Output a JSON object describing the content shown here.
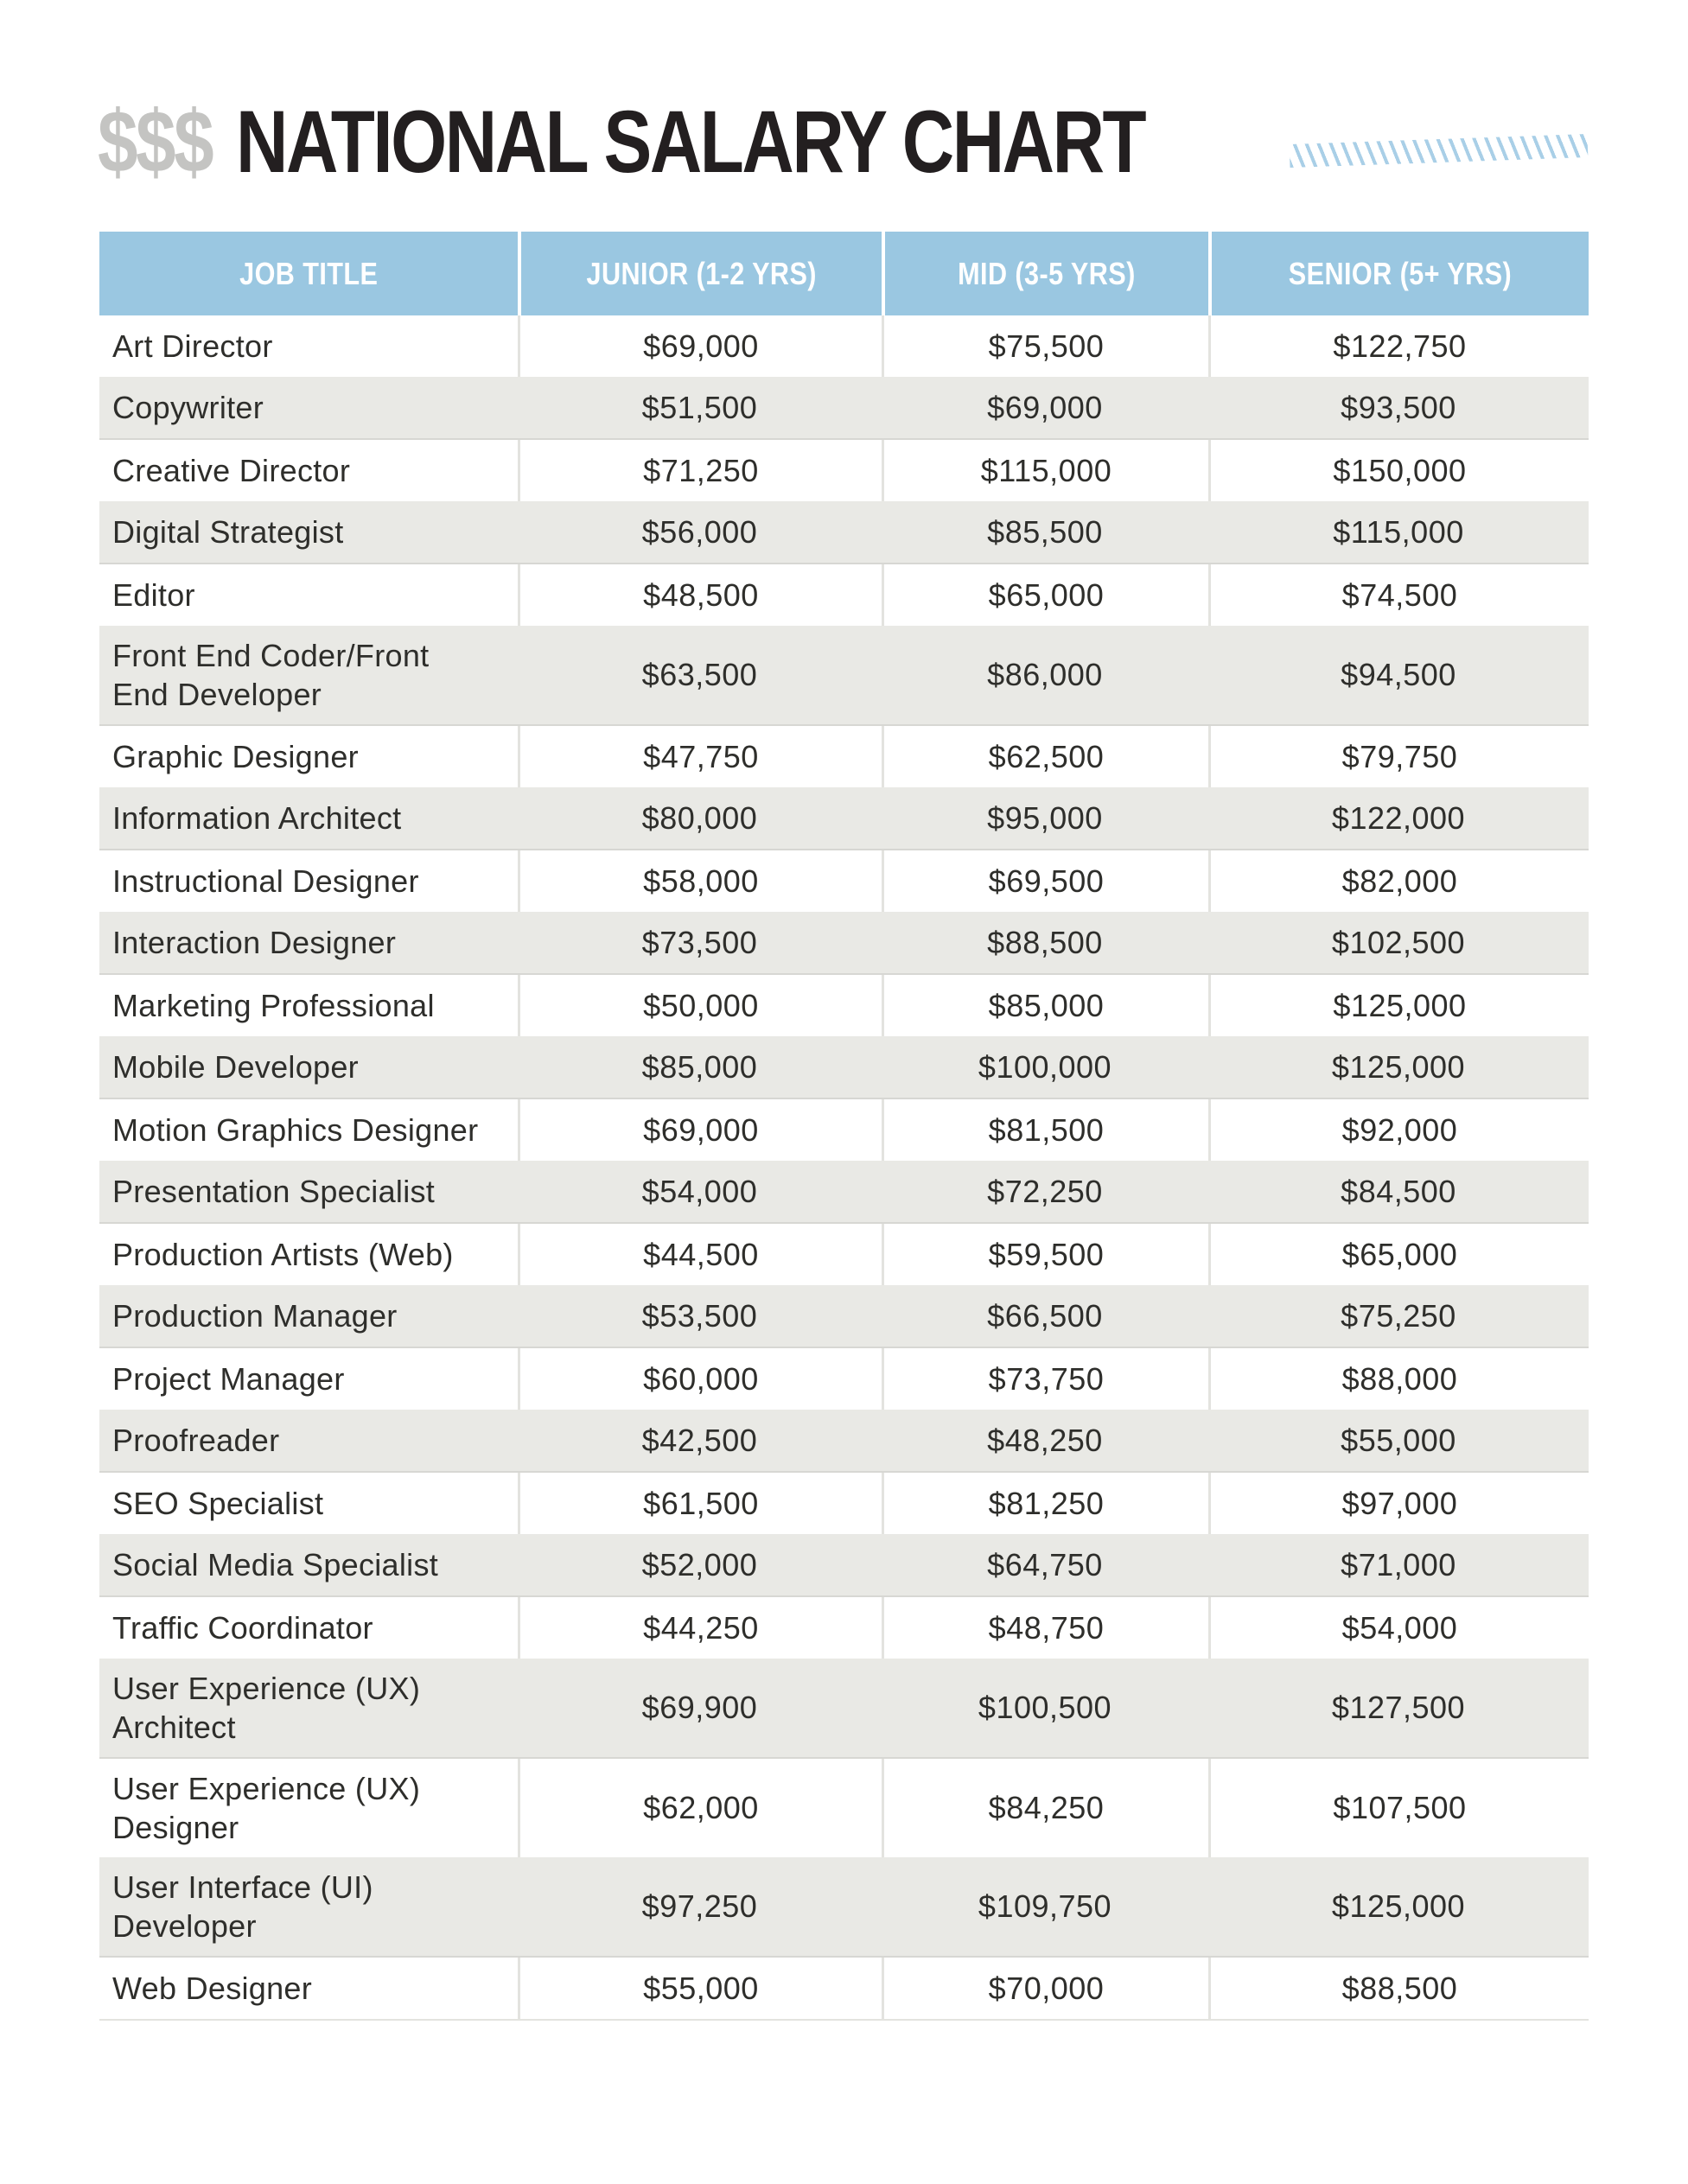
{
  "style": {
    "header_bg": "#9ac7e1",
    "stripe_bg": "#e9e9e5",
    "stripe_edge": "#d7d7d3",
    "divider": "#e3e3df",
    "title_black": "#231f20",
    "dollars_gray": "#c4c4c2",
    "hatch_blue": "#a9cfe7",
    "text": "#2e2e2b"
  },
  "chart_data": {
    "type": "table",
    "title_prefix": "$$$",
    "title": "NATIONAL SALARY CHART",
    "columns": [
      "JOB TITLE",
      "JUNIOR (1-2 YRS)",
      "MID (3-5 YRS)",
      "SENIOR (5+ YRS)"
    ],
    "rows": [
      {
        "job_title": "Art Director",
        "junior": "$69,000",
        "mid": "$75,500",
        "senior": "$122,750"
      },
      {
        "job_title": "Copywriter",
        "junior": "$51,500",
        "mid": "$69,000",
        "senior": "$93,500"
      },
      {
        "job_title": "Creative Director",
        "junior": "$71,250",
        "mid": "$115,000",
        "senior": "$150,000"
      },
      {
        "job_title": "Digital Strategist",
        "junior": "$56,000",
        "mid": "$85,500",
        "senior": "$115,000"
      },
      {
        "job_title": "Editor",
        "junior": "$48,500",
        "mid": "$65,000",
        "senior": "$74,500"
      },
      {
        "job_title": "Front End Coder/Front\nEnd Developer",
        "junior": "$63,500",
        "mid": "$86,000",
        "senior": "$94,500"
      },
      {
        "job_title": "Graphic Designer",
        "junior": "$47,750",
        "mid": "$62,500",
        "senior": "$79,750"
      },
      {
        "job_title": "Information Architect",
        "junior": "$80,000",
        "mid": "$95,000",
        "senior": "$122,000"
      },
      {
        "job_title": "Instructional Designer",
        "junior": "$58,000",
        "mid": "$69,500",
        "senior": "$82,000"
      },
      {
        "job_title": "Interaction Designer",
        "junior": "$73,500",
        "mid": "$88,500",
        "senior": "$102,500"
      },
      {
        "job_title": "Marketing Professional",
        "junior": "$50,000",
        "mid": "$85,000",
        "senior": "$125,000"
      },
      {
        "job_title": "Mobile Developer",
        "junior": "$85,000",
        "mid": "$100,000",
        "senior": "$125,000"
      },
      {
        "job_title": "Motion Graphics Designer",
        "junior": "$69,000",
        "mid": "$81,500",
        "senior": "$92,000"
      },
      {
        "job_title": "Presentation Specialist",
        "junior": "$54,000",
        "mid": "$72,250",
        "senior": "$84,500"
      },
      {
        "job_title": "Production Artists (Web)",
        "junior": "$44,500",
        "mid": "$59,500",
        "senior": "$65,000"
      },
      {
        "job_title": "Production Manager",
        "junior": "$53,500",
        "mid": "$66,500",
        "senior": "$75,250"
      },
      {
        "job_title": "Project Manager",
        "junior": "$60,000",
        "mid": "$73,750",
        "senior": "$88,000"
      },
      {
        "job_title": "Proofreader",
        "junior": "$42,500",
        "mid": "$48,250",
        "senior": "$55,000"
      },
      {
        "job_title": "SEO Specialist",
        "junior": "$61,500",
        "mid": "$81,250",
        "senior": "$97,000"
      },
      {
        "job_title": "Social Media Specialist",
        "junior": "$52,000",
        "mid": "$64,750",
        "senior": "$71,000"
      },
      {
        "job_title": "Traffic Coordinator",
        "junior": "$44,250",
        "mid": "$48,750",
        "senior": "$54,000"
      },
      {
        "job_title": "User Experience (UX)\nArchitect",
        "junior": "$69,900",
        "mid": "$100,500",
        "senior": "$127,500"
      },
      {
        "job_title": "User Experience (UX)\nDesigner",
        "junior": "$62,000",
        "mid": "$84,250",
        "senior": "$107,500"
      },
      {
        "job_title": "User Interface (UI)\nDeveloper",
        "junior": "$97,250",
        "mid": "$109,750",
        "senior": "$125,000"
      },
      {
        "job_title": "Web Designer",
        "junior": "$55,000",
        "mid": "$70,000",
        "senior": "$88,500"
      }
    ]
  }
}
